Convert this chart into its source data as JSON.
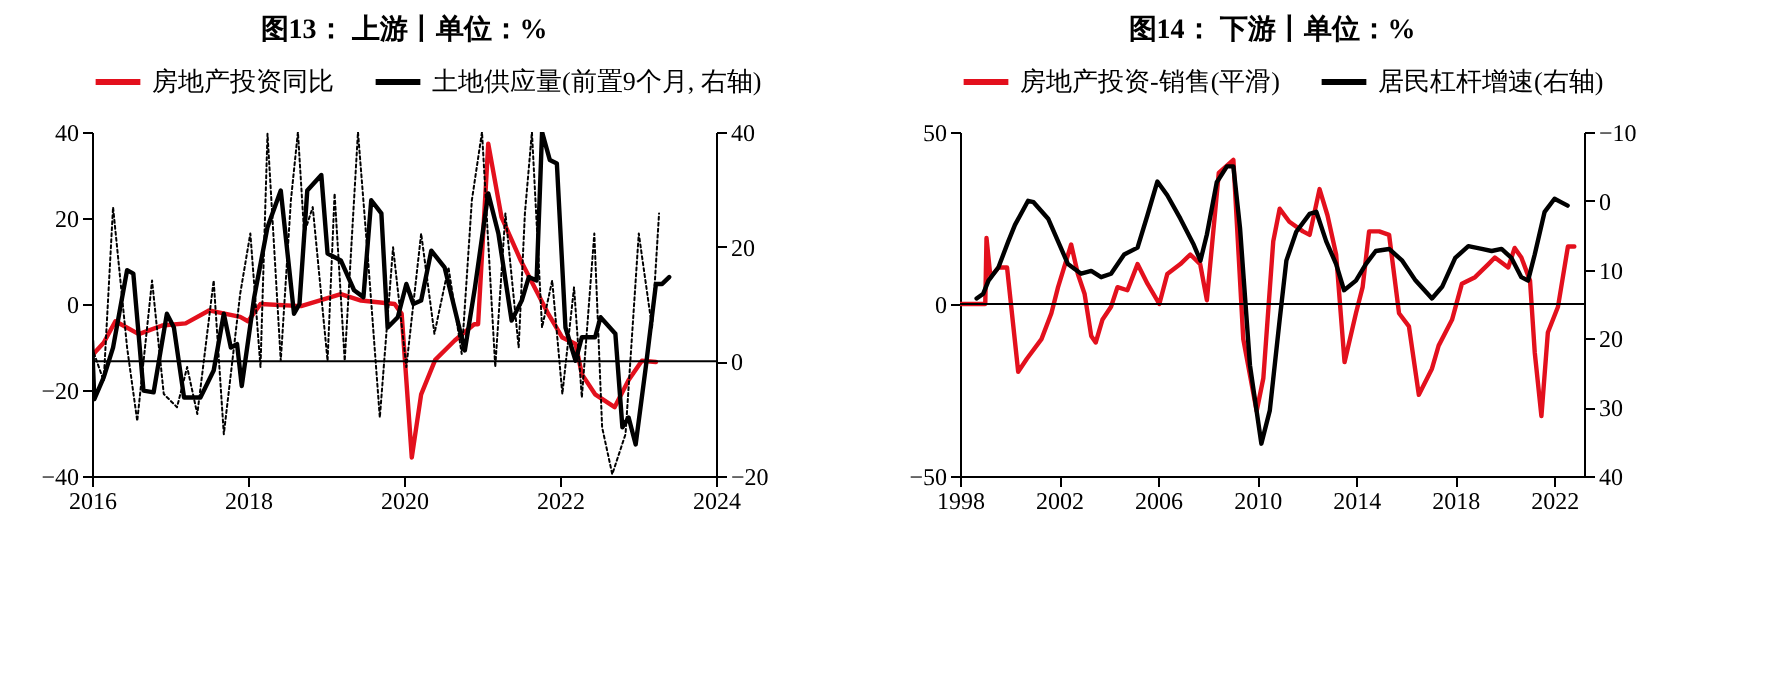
{
  "chart_data": [
    {
      "type": "line",
      "title": "图13： 上游丨单位：%",
      "legend": "top",
      "xlim": [
        2016,
        2024
      ],
      "xticks": [
        2016,
        2018,
        2020,
        2022,
        2024
      ],
      "ylim": [
        -40,
        40
      ],
      "yticks": [
        -40,
        -20,
        0,
        20,
        40
      ],
      "y2lim": [
        -20,
        40
      ],
      "y2ticks": [
        -20,
        0,
        20,
        40
      ],
      "ref_lines": [
        {
          "axis": "y2",
          "value": 0
        }
      ],
      "series": [
        {
          "name": "房地产投资同比",
          "color": "#e3101d",
          "x": [
            2016.0,
            2016.15,
            2016.3,
            2016.6,
            2016.9,
            2017.2,
            2017.5,
            2017.9,
            2018.0,
            2018.16,
            2018.68,
            2019.19,
            2019.45,
            2019.88,
            2019.97,
            2020.1,
            2020.22,
            2020.4,
            2020.65,
            2020.9,
            2020.95,
            2021.08,
            2021.25,
            2021.5,
            2021.85,
            2022.03,
            2022.2,
            2022.28,
            2022.45,
            2022.7,
            2022.88,
            2023.05,
            2023.23
          ],
          "values": [
            -12,
            -9,
            -4,
            -7,
            -5,
            -4.5,
            -1.5,
            -3,
            -4,
            0,
            -0.5,
            2.3,
            0.8,
            0,
            -2.3,
            -35.7,
            -21,
            -13,
            -8.5,
            -4.7,
            -4.7,
            37.3,
            20.2,
            10,
            -2.3,
            -7.8,
            -9.3,
            -16.3,
            -21,
            -24,
            -17.7,
            -13.2,
            -13.5
          ]
        },
        {
          "name": "土地供应量(前置9个月, 右轴)",
          "color": "#000000",
          "axis": "y2",
          "x": [
            2016.0,
            2016.03,
            2016.15,
            2016.27,
            2016.45,
            2016.53,
            2016.66,
            2016.79,
            2016.96,
            2017.05,
            2017.18,
            2017.39,
            2017.56,
            2017.69,
            2017.78,
            2017.86,
            2017.92,
            2018.08,
            2018.25,
            2018.42,
            2018.59,
            2018.66,
            2018.76,
            2018.94,
            2019.02,
            2019.19,
            2019.36,
            2019.48,
            2019.58,
            2019.71,
            2019.79,
            2019.92,
            2020.03,
            2020.12,
            2020.22,
            2020.35,
            2020.52,
            2020.78,
            2020.91,
            2021.08,
            2021.21,
            2021.38,
            2021.51,
            2021.6,
            2021.7,
            2021.77,
            2021.87,
            2021.96,
            2022.07,
            2022.2,
            2022.28,
            2022.45,
            2022.52,
            2022.71,
            2022.8,
            2022.88,
            2022.97,
            2023.1,
            2023.23,
            2023.31,
            2023.4
          ],
          "values": [
            3.6,
            -6.6,
            -2.8,
            2.4,
            15.9,
            15.3,
            -5.1,
            -5.4,
            8.3,
            5.9,
            -6.3,
            -6.3,
            -1.6,
            8.3,
            2.4,
            3,
            -4.3,
            11.2,
            23.4,
            29.8,
            8.3,
            10,
            29.8,
            32.5,
            18.8,
            17.6,
            12.4,
            11.2,
            28.1,
            25.8,
            5.9,
            7.7,
            13.5,
            10,
            10.6,
            19.3,
            16.4,
            1.9,
            12.9,
            29.3,
            22.3,
            7.1,
            10.6,
            14.7,
            14.1,
            40,
            35.1,
            34.5,
            5.9,
            0.1,
            4.2,
            4.2,
            7.7,
            4.8,
            -11.5,
            -9.8,
            -14.5,
            -1,
            13.5,
            13.5,
            14.7
          ]
        },
        {
          "type": "line",
          "color": "#000000",
          "axis": "y2",
          "line_style": "dotted",
          "x": [
            2016.0,
            2016.15,
            2016.27,
            2016.45,
            2016.58,
            2016.77,
            2016.92,
            2017.09,
            2017.22,
            2017.35,
            2017.56,
            2017.69,
            2017.9,
            2018.03,
            2018.16,
            2018.25,
            2018.42,
            2018.55,
            2018.64,
            2018.72,
            2018.83,
            2019.02,
            2019.11,
            2019.24,
            2019.41,
            2019.54,
            2019.69,
            2019.86,
            2020.03,
            2020.22,
            2020.39,
            2020.57,
            2020.74,
            2020.87,
            2021.0,
            2021.17,
            2021.3,
            2021.47,
            2021.55,
            2021.64,
            2021.77,
            2021.9,
            2022.03,
            2022.18,
            2022.28,
            2022.44,
            2022.54,
            2022.67,
            2022.84,
            2023.01,
            2023.18,
            2023.27
          ],
          "values": [
            2.4,
            -3.4,
            26.9,
            2.4,
            -10.4,
            14.1,
            -5.7,
            -8,
            -1,
            -9.2,
            14.1,
            -12.7,
            11.8,
            22.3,
            -1,
            39.7,
            0.1,
            28.1,
            40,
            22.3,
            26.9,
            0.1,
            29.3,
            0.1,
            40,
            17.6,
            -9.8,
            19.9,
            -1,
            22.3,
            4.8,
            16.4,
            1.3,
            28.1,
            40,
            -1,
            25.8,
            2.4,
            25.8,
            40,
            5.9,
            14.1,
            -5.7,
            12.9,
            -6.3,
            22.3,
            -11.5,
            -19.7,
            -12.7,
            22.3,
            5.9,
            25.8
          ]
        }
      ]
    },
    {
      "type": "line",
      "title": "图14： 下游丨单位：%",
      "legend": "top",
      "xlim": [
        1998,
        2023.2
      ],
      "xticks": [
        1998,
        2002,
        2006,
        2010,
        2014,
        2018,
        2022
      ],
      "ylim": [
        -50,
        50
      ],
      "yticks": [
        -50,
        0,
        50
      ],
      "y2lim": [
        40,
        -10
      ],
      "y2ticks": [
        -10,
        0,
        10,
        20,
        30,
        40
      ],
      "ref_lines": [
        {
          "axis": "y",
          "value": 0
        }
      ],
      "series": [
        {
          "name": "房地产投资-销售(平滑)",
          "color": "#e3101d",
          "x": [
            1998.0,
            1999.02,
            1999.07,
            1999.23,
            1999.55,
            1999.9,
            2000.35,
            2000.7,
            2001.29,
            2001.69,
            2001.96,
            2002.49,
            2002.76,
            2003.03,
            2003.3,
            2003.48,
            2003.75,
            2004.1,
            2004.36,
            2004.76,
            2005.17,
            2005.57,
            2006.05,
            2006.37,
            2006.9,
            2007.3,
            2007.7,
            2007.97,
            2008.45,
            2009.04,
            2009.44,
            2009.98,
            2010.25,
            2010.65,
            2010.91,
            2011.3,
            2011.85,
            2012.12,
            2012.52,
            2012.84,
            2013.19,
            2013.53,
            2013.99,
            2014.26,
            2014.52,
            2014.93,
            2015.33,
            2015.73,
            2016.13,
            2016.53,
            2017.06,
            2017.33,
            2017.87,
            2018.27,
            2018.8,
            2019.34,
            2019.6,
            2020.14,
            2020.4,
            2020.67,
            2021.02,
            2021.21,
            2021.48,
            2021.74,
            2022.15,
            2022.55,
            2022.81
          ],
          "values": [
            0,
            0,
            19.2,
            7.8,
            10.6,
            10.6,
            -19.7,
            -15.9,
            -10.2,
            -2.7,
            4.9,
            17.3,
            8.7,
            3,
            -9.3,
            -11.2,
            -4.6,
            -0.8,
            4.9,
            4,
            11.6,
            5.9,
            0,
            8.7,
            11.6,
            14.4,
            11.6,
            1.1,
            38.1,
            41.9,
            -10.2,
            -31.1,
            -21.6,
            18.2,
            27.7,
            23.9,
            21.1,
            20.1,
            33.4,
            25.8,
            14.4,
            -16.9,
            -2.7,
            4.9,
            21.1,
            21.1,
            20.1,
            -2.7,
            -6.5,
            -26.4,
            -18.8,
            -12.1,
            -4.6,
            5.9,
            7.8,
            11.6,
            13.5,
            10.6,
            16.3,
            13.5,
            6.8,
            -14,
            -32.6,
            -8.3,
            -0.8,
            16.7,
            16.7
          ]
        },
        {
          "name": "居民杠杆增速(右轴)",
          "color": "#000000",
          "axis": "y2",
          "x": [
            1998.67,
            1998.94,
            1999.15,
            1999.55,
            1999.95,
            2000.22,
            2000.75,
            2000.97,
            2001.56,
            2001.96,
            2002.36,
            2002.89,
            2003.3,
            2003.7,
            2004.1,
            2004.63,
            2005.17,
            2005.57,
            2005.97,
            2006.37,
            2006.9,
            2007.44,
            2007.71,
            2007.97,
            2008.37,
            2008.78,
            2009.04,
            2009.31,
            2009.71,
            2010.17,
            2010.51,
            2010.91,
            2011.18,
            2011.58,
            2012.12,
            2012.39,
            2012.79,
            2013.19,
            2013.51,
            2013.99,
            2014.39,
            2014.79,
            2015.33,
            2015.86,
            2016.4,
            2017.06,
            2017.47,
            2018.0,
            2018.53,
            2019.07,
            2019.47,
            2019.87,
            2020.27,
            2020.67,
            2020.94,
            2021.21,
            2021.61,
            2022.01,
            2022.27,
            2022.54
          ],
          "values": [
            14.2,
            13.5,
            11.6,
            9.7,
            5.9,
            3.5,
            0,
            0.2,
            2.6,
            5.9,
            9.2,
            10.6,
            10.2,
            11.1,
            10.6,
            7.8,
            6.8,
            2.1,
            -2.8,
            -0.8,
            2.6,
            6.4,
            8.7,
            4.9,
            -2.7,
            -5,
            -5,
            4,
            23.9,
            35.3,
            30.5,
            17.3,
            8.7,
            4.5,
            1.9,
            1.6,
            5.9,
            9.2,
            13,
            11.6,
            9.2,
            7.3,
            7,
            8.7,
            11.6,
            14.2,
            12.5,
            8.3,
            6.6,
            7,
            7.3,
            7,
            8.3,
            11.1,
            11.6,
            7.8,
            1.6,
            -0.3,
            0.2,
            0.7
          ]
        }
      ]
    }
  ]
}
